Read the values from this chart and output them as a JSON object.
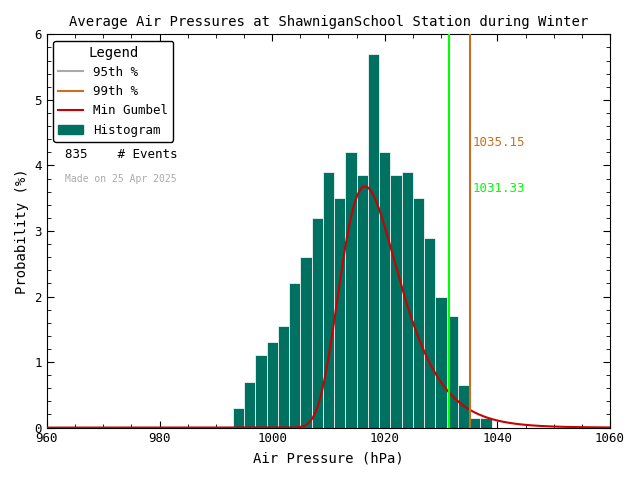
{
  "title": "Average Air Pressures at ShawniganSchool Station during Winter",
  "xlabel": "Air Pressure (hPa)",
  "ylabel": "Probability (%)",
  "xlim": [
    960,
    1060
  ],
  "ylim": [
    0,
    6
  ],
  "xticks": [
    960,
    980,
    1000,
    1020,
    1040,
    1060
  ],
  "yticks": [
    0,
    1,
    2,
    3,
    4,
    5,
    6
  ],
  "n_events": 835,
  "pct95": 1031.33,
  "pct99": 1035.15,
  "hist_color": "#007060",
  "hist_edge_color": "#ffffff",
  "pct95_color": "#00ff00",
  "pct99_color": "#c87020",
  "gumbel_color": "#cc0000",
  "legend_95_color": "#aaaaaa",
  "legend_99_color": "#c87020",
  "legend_title": "Legend",
  "legend_95_label": "95th %",
  "legend_99_label": "99th %",
  "legend_gumbel_label": "Min Gumbel",
  "legend_hist_label": "Histogram",
  "legend_events_label": "# Events",
  "made_on_text": "Made on 25 Apr 2025",
  "bin_left_edges": [
    993,
    995,
    997,
    999,
    1001,
    1003,
    1005,
    1007,
    1009,
    1011,
    1013,
    1015,
    1017,
    1019,
    1021,
    1023,
    1025,
    1027,
    1029,
    1031,
    1033,
    1035,
    1037
  ],
  "bin_heights": [
    0.3,
    0.7,
    1.1,
    1.3,
    1.55,
    2.2,
    2.6,
    3.2,
    3.9,
    3.5,
    4.2,
    3.85,
    5.7,
    4.2,
    3.85,
    3.9,
    3.5,
    2.9,
    2.0,
    1.7,
    0.65,
    0.15,
    0.15
  ],
  "gumbel_mu": 1016.5,
  "gumbel_beta": 5.2,
  "gumbel_scale": 52.0,
  "background_color": "#ffffff",
  "font_family": "monospace",
  "font_size_title": 10,
  "font_size_axis": 10,
  "font_size_tick": 9,
  "font_size_legend": 9,
  "font_size_annot": 9
}
